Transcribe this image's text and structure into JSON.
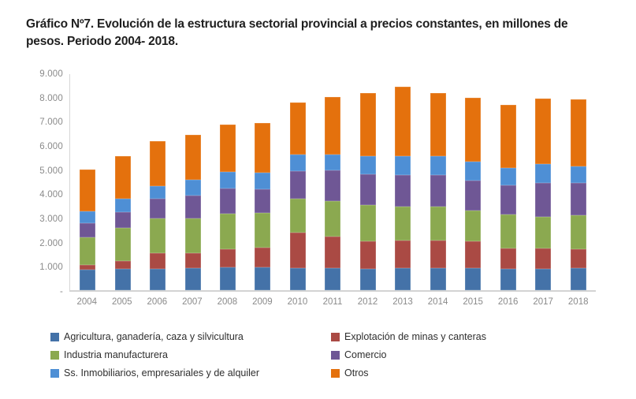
{
  "chart_data": {
    "type": "bar",
    "stacked": true,
    "title": "Gráfico Nº7. Evolución de la estructura sectorial provincial a precios constantes, en millones de pesos. Periodo 2004- 2018.",
    "xlabel": "",
    "ylabel": "",
    "ylim": [
      0,
      9000
    ],
    "grid": false,
    "legend_position": "bottom",
    "y_ticks": [
      {
        "label": "9.000",
        "value": 9000
      },
      {
        "label": "8.000",
        "value": 8000
      },
      {
        "label": "7.000",
        "value": 7000
      },
      {
        "label": "6.000",
        "value": 6000
      },
      {
        "label": "5.000",
        "value": 5000
      },
      {
        "label": "4.000",
        "value": 4000
      },
      {
        "label": "3.000",
        "value": 3000
      },
      {
        "label": "2.000",
        "value": 2000
      },
      {
        "label": "1.000",
        "value": 1000
      },
      {
        "label": "-",
        "value": 0
      }
    ],
    "categories": [
      "2004",
      "2005",
      "2006",
      "2007",
      "2008",
      "2009",
      "2010",
      "2011",
      "2012",
      "2013",
      "2014",
      "2015",
      "2016",
      "2017",
      "2018"
    ],
    "series": [
      {
        "id": "agricultura",
        "name": "Agricultura, ganadería, caza y silvicultura",
        "color": "#4472A8",
        "values": [
          860,
          890,
          890,
          925,
          955,
          955,
          925,
          925,
          895,
          925,
          925,
          925,
          895,
          895,
          925
        ]
      },
      {
        "id": "minas",
        "name": "Explotación de minas y canteras",
        "color": "#AA4A44",
        "values": [
          195,
          325,
          650,
          615,
          750,
          810,
          1465,
          1300,
          1135,
          1135,
          1135,
          1105,
          845,
          845,
          780
        ]
      },
      {
        "id": "industria",
        "name": "Industria manufacturera",
        "color": "#8BA950",
        "values": [
          1140,
          1365,
          1460,
          1460,
          1490,
          1460,
          1430,
          1495,
          1525,
          1430,
          1430,
          1300,
          1430,
          1330,
          1430
        ]
      },
      {
        "id": "comercio",
        "name": "Comercio",
        "color": "#6F5795",
        "values": [
          585,
          680,
          815,
          945,
          1040,
          975,
          1135,
          1265,
          1265,
          1300,
          1300,
          1235,
          1200,
          1395,
          1330
        ]
      },
      {
        "id": "inmobiliarios",
        "name": "Ss. Inmobiliarios, empresariales y de alquiler",
        "color": "#4E8FD5",
        "values": [
          520,
          555,
          520,
          650,
          680,
          680,
          680,
          680,
          780,
          780,
          780,
          780,
          715,
          780,
          680
        ]
      },
      {
        "id": "otros",
        "name": "Otros",
        "color": "#E4710D",
        "values": [
          1720,
          1755,
          1885,
          1885,
          1980,
          2080,
          2175,
          2400,
          2600,
          2920,
          2660,
          2665,
          2630,
          2725,
          2790
        ]
      }
    ]
  }
}
